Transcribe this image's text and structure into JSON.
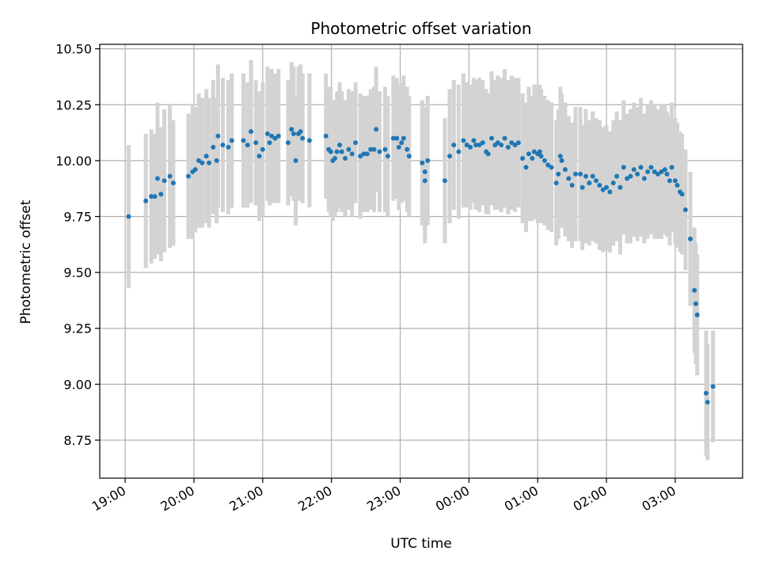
{
  "chart_data": {
    "type": "scatter",
    "title": "Photometric offset variation",
    "xlabel": "UTC time",
    "ylabel": "Photometric offset",
    "x_unit": "hours after 19:00 UTC",
    "xlim": [
      -0.37,
      8.98
    ],
    "ylim": [
      8.58,
      10.52
    ],
    "grid": true,
    "colors": {
      "points": "#1f77b4",
      "errorbars": "#d3d3d3",
      "grid": "#b0b0b0"
    },
    "x_ticks": [
      {
        "value": 0,
        "label": "19:00"
      },
      {
        "value": 1,
        "label": "20:00"
      },
      {
        "value": 2,
        "label": "21:00"
      },
      {
        "value": 3,
        "label": "22:00"
      },
      {
        "value": 4,
        "label": "23:00"
      },
      {
        "value": 5,
        "label": "00:00"
      },
      {
        "value": 6,
        "label": "01:00"
      },
      {
        "value": 7,
        "label": "02:00"
      },
      {
        "value": 8,
        "label": "03:00"
      }
    ],
    "y_ticks": [
      {
        "value": 8.75,
        "label": "8.75"
      },
      {
        "value": 9.0,
        "label": "9.00"
      },
      {
        "value": 9.25,
        "label": "9.25"
      },
      {
        "value": 9.5,
        "label": "9.50"
      },
      {
        "value": 9.75,
        "label": "9.75"
      },
      {
        "value": 10.0,
        "label": "10.00"
      },
      {
        "value": 10.25,
        "label": "10.25"
      },
      {
        "value": 10.5,
        "label": "10.50"
      }
    ],
    "points": [
      [
        0.05,
        9.75,
        0.32
      ],
      [
        0.3,
        9.82,
        0.3
      ],
      [
        0.38,
        9.84,
        0.3
      ],
      [
        0.43,
        9.84,
        0.28
      ],
      [
        0.47,
        9.92,
        0.34
      ],
      [
        0.52,
        9.85,
        0.3
      ],
      [
        0.57,
        9.91,
        0.32
      ],
      [
        0.65,
        9.93,
        0.32
      ],
      [
        0.7,
        9.9,
        0.28
      ],
      [
        0.92,
        9.93,
        0.28
      ],
      [
        0.98,
        9.95,
        0.3
      ],
      [
        1.02,
        9.96,
        0.28
      ],
      [
        1.07,
        10.0,
        0.3
      ],
      [
        1.12,
        9.99,
        0.29
      ],
      [
        1.18,
        10.02,
        0.3
      ],
      [
        1.22,
        9.99,
        0.29
      ],
      [
        1.28,
        10.06,
        0.3
      ],
      [
        1.33,
        10.0,
        0.28
      ],
      [
        1.35,
        10.11,
        0.32
      ],
      [
        1.42,
        10.07,
        0.3
      ],
      [
        1.5,
        10.06,
        0.3
      ],
      [
        1.55,
        10.09,
        0.3
      ],
      [
        1.72,
        10.09,
        0.3
      ],
      [
        1.78,
        10.07,
        0.28
      ],
      [
        1.83,
        10.13,
        0.32
      ],
      [
        1.9,
        10.08,
        0.28
      ],
      [
        1.95,
        10.02,
        0.29
      ],
      [
        2.0,
        10.05,
        0.3
      ],
      [
        2.07,
        10.12,
        0.3
      ],
      [
        2.1,
        10.08,
        0.28
      ],
      [
        2.13,
        10.11,
        0.3
      ],
      [
        2.18,
        10.1,
        0.29
      ],
      [
        2.23,
        10.11,
        0.3
      ],
      [
        2.37,
        10.08,
        0.28
      ],
      [
        2.42,
        10.14,
        0.3
      ],
      [
        2.45,
        10.12,
        0.3
      ],
      [
        2.48,
        10.0,
        0.29
      ],
      [
        2.52,
        10.12,
        0.3
      ],
      [
        2.55,
        10.13,
        0.3
      ],
      [
        2.58,
        10.1,
        0.29
      ],
      [
        2.68,
        10.09,
        0.3
      ],
      [
        2.92,
        10.11,
        0.28
      ],
      [
        2.96,
        10.05,
        0.28
      ],
      [
        2.99,
        10.04,
        0.29
      ],
      [
        3.02,
        10.0,
        0.27
      ],
      [
        3.05,
        10.01,
        0.26
      ],
      [
        3.08,
        10.04,
        0.27
      ],
      [
        3.12,
        10.07,
        0.28
      ],
      [
        3.15,
        10.04,
        0.27
      ],
      [
        3.2,
        10.01,
        0.26
      ],
      [
        3.25,
        10.05,
        0.27
      ],
      [
        3.3,
        10.03,
        0.28
      ],
      [
        3.35,
        10.08,
        0.27
      ],
      [
        3.42,
        10.02,
        0.28
      ],
      [
        3.47,
        10.03,
        0.26
      ],
      [
        3.52,
        10.03,
        0.26
      ],
      [
        3.57,
        10.05,
        0.27
      ],
      [
        3.62,
        10.05,
        0.28
      ],
      [
        3.65,
        10.14,
        0.28
      ],
      [
        3.7,
        10.04,
        0.27
      ],
      [
        3.78,
        10.05,
        0.28
      ],
      [
        3.82,
        10.02,
        0.27
      ],
      [
        3.9,
        10.1,
        0.28
      ],
      [
        3.95,
        10.1,
        0.27
      ],
      [
        3.98,
        10.06,
        0.28
      ],
      [
        4.02,
        10.08,
        0.27
      ],
      [
        4.05,
        10.1,
        0.28
      ],
      [
        4.1,
        10.05,
        0.28
      ],
      [
        4.13,
        10.02,
        0.27
      ],
      [
        4.32,
        9.99,
        0.28
      ],
      [
        4.36,
        9.91,
        0.28
      ],
      [
        4.4,
        10.0,
        0.29
      ],
      [
        4.36,
        9.95,
        0.29
      ],
      [
        4.65,
        9.91,
        0.28
      ],
      [
        4.72,
        10.02,
        0.3
      ],
      [
        4.78,
        10.07,
        0.29
      ],
      [
        4.85,
        10.04,
        0.3
      ],
      [
        4.92,
        10.09,
        0.3
      ],
      [
        4.97,
        10.07,
        0.28
      ],
      [
        5.02,
        10.06,
        0.28
      ],
      [
        5.07,
        10.09,
        0.28
      ],
      [
        5.1,
        10.07,
        0.29
      ],
      [
        5.15,
        10.07,
        0.3
      ],
      [
        5.2,
        10.08,
        0.28
      ],
      [
        5.25,
        10.04,
        0.28
      ],
      [
        5.28,
        10.03,
        0.27
      ],
      [
        5.33,
        10.1,
        0.3
      ],
      [
        5.38,
        10.07,
        0.29
      ],
      [
        5.42,
        10.08,
        0.3
      ],
      [
        5.47,
        10.07,
        0.3
      ],
      [
        5.52,
        10.1,
        0.31
      ],
      [
        5.57,
        10.06,
        0.3
      ],
      [
        5.62,
        10.08,
        0.3
      ],
      [
        5.67,
        10.07,
        0.3
      ],
      [
        5.72,
        10.08,
        0.29
      ],
      [
        5.78,
        10.01,
        0.29
      ],
      [
        5.83,
        9.97,
        0.29
      ],
      [
        5.87,
        10.03,
        0.3
      ],
      [
        5.92,
        10.01,
        0.28
      ],
      [
        5.95,
        10.04,
        0.3
      ],
      [
        6.0,
        10.03,
        0.31
      ],
      [
        6.03,
        10.04,
        0.3
      ],
      [
        6.05,
        10.02,
        0.3
      ],
      [
        6.1,
        10.0,
        0.29
      ],
      [
        6.15,
        9.98,
        0.29
      ],
      [
        6.2,
        9.97,
        0.29
      ],
      [
        6.27,
        9.9,
        0.28
      ],
      [
        6.3,
        9.94,
        0.29
      ],
      [
        6.33,
        10.02,
        0.31
      ],
      [
        6.35,
        10.0,
        0.3
      ],
      [
        6.4,
        9.96,
        0.3
      ],
      [
        6.45,
        9.92,
        0.28
      ],
      [
        6.5,
        9.89,
        0.28
      ],
      [
        6.55,
        9.94,
        0.3
      ],
      [
        6.62,
        9.94,
        0.3
      ],
      [
        6.65,
        9.88,
        0.28
      ],
      [
        6.7,
        9.93,
        0.3
      ],
      [
        6.75,
        9.9,
        0.28
      ],
      [
        6.8,
        9.93,
        0.29
      ],
      [
        6.85,
        9.91,
        0.28
      ],
      [
        6.9,
        9.89,
        0.29
      ],
      [
        6.95,
        9.87,
        0.28
      ],
      [
        7.0,
        9.88,
        0.28
      ],
      [
        7.05,
        9.86,
        0.27
      ],
      [
        7.1,
        9.9,
        0.28
      ],
      [
        7.15,
        9.93,
        0.29
      ],
      [
        7.2,
        9.88,
        0.3
      ],
      [
        7.25,
        9.97,
        0.3
      ],
      [
        7.3,
        9.92,
        0.29
      ],
      [
        7.35,
        9.93,
        0.3
      ],
      [
        7.4,
        9.96,
        0.3
      ],
      [
        7.45,
        9.94,
        0.3
      ],
      [
        7.5,
        9.97,
        0.31
      ],
      [
        7.55,
        9.92,
        0.29
      ],
      [
        7.6,
        9.95,
        0.3
      ],
      [
        7.65,
        9.97,
        0.3
      ],
      [
        7.7,
        9.95,
        0.3
      ],
      [
        7.75,
        9.94,
        0.29
      ],
      [
        7.8,
        9.95,
        0.3
      ],
      [
        7.85,
        9.96,
        0.29
      ],
      [
        7.88,
        9.94,
        0.28
      ],
      [
        7.92,
        9.91,
        0.29
      ],
      [
        7.95,
        9.97,
        0.29
      ],
      [
        8.0,
        9.91,
        0.28
      ],
      [
        8.03,
        9.89,
        0.28
      ],
      [
        8.07,
        9.86,
        0.27
      ],
      [
        8.1,
        9.85,
        0.27
      ],
      [
        8.15,
        9.78,
        0.27
      ],
      [
        8.22,
        9.65,
        0.3
      ],
      [
        8.28,
        9.42,
        0.28
      ],
      [
        8.3,
        9.36,
        0.27
      ],
      [
        8.32,
        9.31,
        0.27
      ],
      [
        8.45,
        8.96,
        0.28
      ],
      [
        8.47,
        8.92,
        0.26
      ],
      [
        8.55,
        8.99,
        0.25
      ]
    ]
  }
}
